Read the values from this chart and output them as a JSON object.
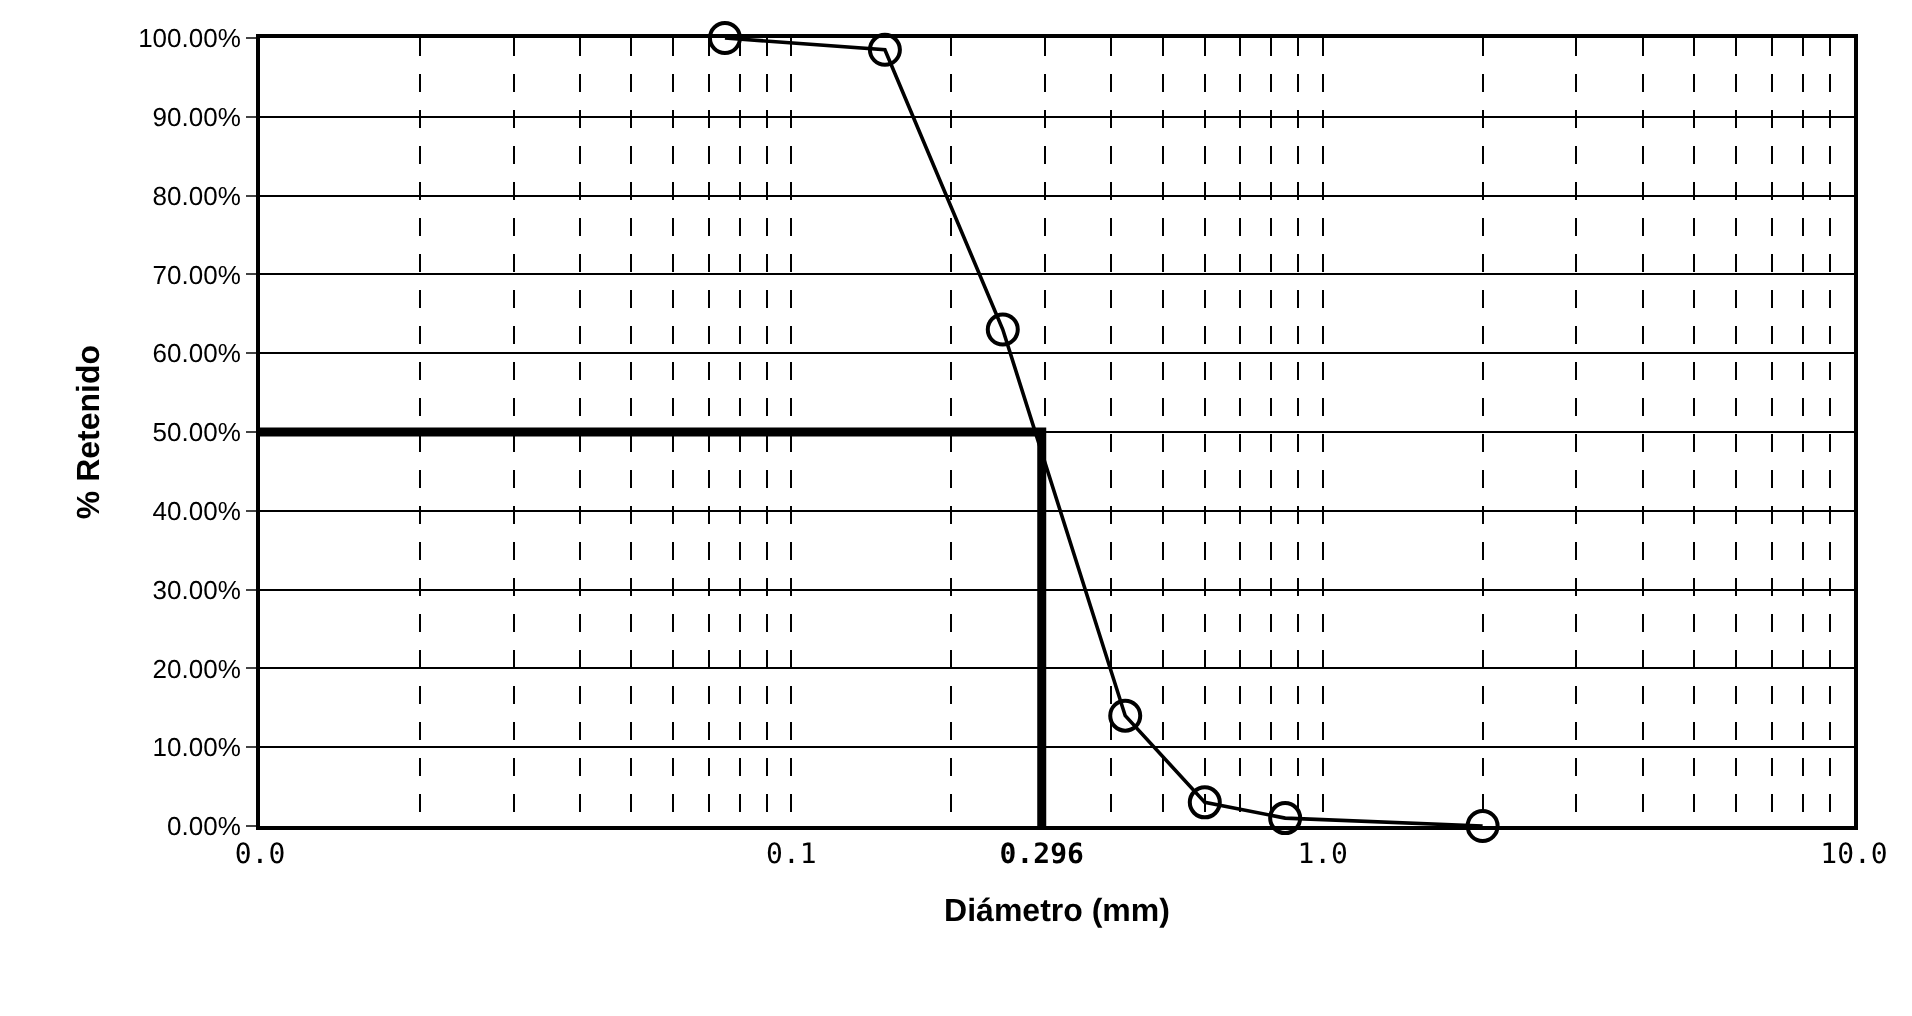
{
  "chart_data": {
    "type": "line",
    "xlabel": "Diámetro (mm)",
    "ylabel": "% Retenido",
    "log": "x",
    "xlim": [
      0.01,
      10
    ],
    "xticks": [
      {
        "value": 0.01,
        "label": "0.0"
      },
      {
        "value": 0.1,
        "label": "0.1"
      },
      {
        "value": 0.296,
        "label": "0.296"
      },
      {
        "value": 1,
        "label": "1.0"
      },
      {
        "value": 10,
        "label": "10.0"
      }
    ],
    "ylim": [
      0,
      100
    ],
    "yticks": [
      {
        "value": 0,
        "label": "0.00%"
      },
      {
        "value": 10,
        "label": "10.00%"
      },
      {
        "value": 20,
        "label": "20.00%"
      },
      {
        "value": 30,
        "label": "30.00%"
      },
      {
        "value": 40,
        "label": "40.00%"
      },
      {
        "value": 50,
        "label": "50.00%"
      },
      {
        "value": 60,
        "label": "60.00%"
      },
      {
        "value": 70,
        "label": "70.00%"
      },
      {
        "value": 80,
        "label": "80.00%"
      },
      {
        "value": 90,
        "label": "90.00%"
      },
      {
        "value": 100,
        "label": "100.00%"
      }
    ],
    "grid": true,
    "series": [
      {
        "color": "#000000",
        "marker": "circle",
        "x": [
          0.075,
          0.15,
          0.25,
          0.425,
          0.6,
          0.85,
          2.0
        ],
        "values": [
          100,
          98.5,
          63,
          14,
          3,
          1,
          0
        ]
      },
      {
        "color": "#000000",
        "marker": "none",
        "x": [
          0.01,
          0.296,
          0.296
        ],
        "values": [
          50,
          50,
          0
        ]
      }
    ]
  }
}
